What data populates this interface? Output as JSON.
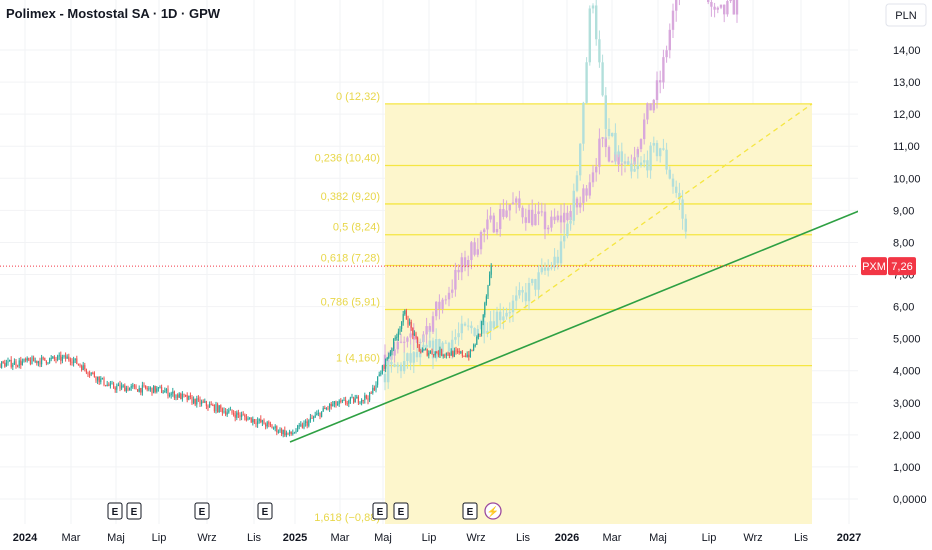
{
  "header": {
    "title": "Polimex - Mostostal SA · 1D · GPW"
  },
  "price_axis": {
    "currency": "PLN",
    "ticks": [
      "14,00",
      "13,00",
      "12,00",
      "11,00",
      "10,00",
      "9,00",
      "8,00",
      "7,00",
      "6,00",
      "5,000",
      "4,000",
      "3,000",
      "2,000",
      "1,000",
      "0,0000"
    ],
    "tick_values": [
      14,
      13,
      12,
      11,
      10,
      9,
      8,
      7,
      6,
      5,
      4,
      3,
      2,
      1,
      0
    ]
  },
  "time_axis": {
    "labels": [
      "2024",
      "Mar",
      "Maj",
      "Lip",
      "Wrz",
      "Lis",
      "2025",
      "Mar",
      "Maj",
      "Lip",
      "Wrz",
      "Lis",
      "2026",
      "Mar",
      "Maj",
      "Lip",
      "Wrz",
      "Lis",
      "2027"
    ]
  },
  "last_price": {
    "symbol": "PXM",
    "value": "7,26",
    "price": 7.26,
    "color": "#f23645"
  },
  "fibonacci": {
    "levels": [
      {
        "label": "0 (12,32)",
        "price": 12.32
      },
      {
        "label": "0,236 (10,40)",
        "price": 10.4
      },
      {
        "label": "0,382 (9,20)",
        "price": 9.2
      },
      {
        "label": "0,5 (8,24)",
        "price": 8.24
      },
      {
        "label": "0,618 (7,28)",
        "price": 7.28
      },
      {
        "label": "0,786 (5,91)",
        "price": 5.91
      },
      {
        "label": "1 (4,160)",
        "price": 4.16
      },
      {
        "label": "1,618 (−0,88)",
        "price": -0.88
      }
    ],
    "color": "#f5e642"
  },
  "events": [
    {
      "label": "E"
    },
    {
      "label": "E"
    },
    {
      "label": "E"
    },
    {
      "label": "E"
    },
    {
      "label": "E"
    },
    {
      "label": "E"
    },
    {
      "label": "E"
    },
    {
      "label": "⚡"
    }
  ],
  "colors": {
    "up": "#26a69a",
    "down": "#ef5350",
    "trend": "#2ea043",
    "ghost_up": "#b2dfdb",
    "ghost_down": "#d8a8dc"
  }
}
